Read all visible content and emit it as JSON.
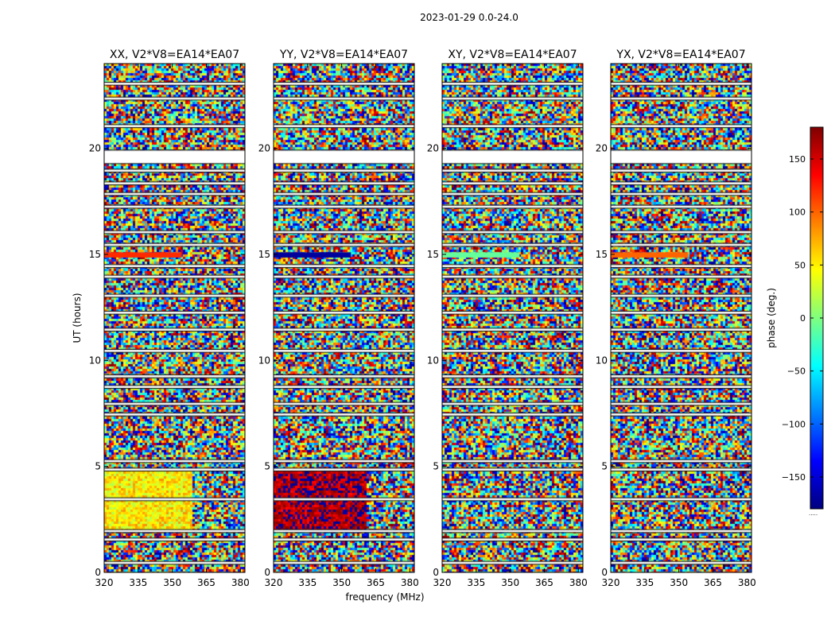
{
  "chart_data": {
    "type": "heatmap",
    "title": "2023-01-29 0.0-24.0",
    "xlabel": "frequency (MHz)",
    "ylabel": "UT (hours)",
    "xlim": [
      320,
      382
    ],
    "ylim": [
      0,
      24
    ],
    "x_ticks": [
      320,
      335,
      350,
      365,
      380
    ],
    "y_ticks": [
      0,
      5,
      10,
      15,
      20
    ],
    "panels": [
      {
        "title": "XX, V2*V8=EA14*EA07",
        "low_band_phase": 50,
        "low_band_ut": [
          2.0,
          4.8
        ],
        "low_band_freq_end": 358,
        "flag_band_ut": [
          14.85,
          15.1
        ],
        "flag_band_phase": 120
      },
      {
        "title": "YY, V2*V8=EA14*EA07",
        "low_band_phase": 165,
        "low_band_ut": [
          2.0,
          4.8
        ],
        "low_band_freq_end": 360,
        "flag_band_ut": [
          14.85,
          15.1
        ],
        "flag_band_phase": -170
      },
      {
        "title": "XY, V2*V8=EA14*EA07",
        "low_band_phase": null,
        "low_band_ut": null,
        "low_band_freq_end": null,
        "flag_band_ut": [
          14.85,
          15.1
        ],
        "flag_band_phase": -10
      },
      {
        "title": "YX, V2*V8=EA14*EA07",
        "low_band_phase": null,
        "low_band_ut": null,
        "low_band_freq_end": null,
        "flag_band_ut": [
          14.85,
          15.1
        ],
        "flag_band_phase": 100
      }
    ],
    "gap_bands_ut": [
      [
        0.4,
        0.5
      ],
      [
        1.5,
        1.6
      ],
      [
        1.9,
        2.0
      ],
      [
        3.4,
        3.5
      ],
      [
        4.8,
        4.9
      ],
      [
        5.2,
        5.3
      ],
      [
        7.4,
        7.5
      ],
      [
        7.9,
        8.0
      ],
      [
        8.7,
        8.8
      ],
      [
        9.2,
        9.3
      ],
      [
        10.4,
        10.5
      ],
      [
        11.4,
        11.5
      ],
      [
        12.2,
        12.3
      ],
      [
        13.0,
        13.1
      ],
      [
        13.9,
        14.0
      ],
      [
        14.4,
        14.5
      ],
      [
        15.4,
        15.5
      ],
      [
        16.0,
        16.1
      ],
      [
        17.2,
        17.3
      ],
      [
        17.8,
        17.9
      ],
      [
        18.3,
        18.4
      ],
      [
        18.9,
        19.0
      ],
      [
        19.3,
        19.9
      ],
      [
        21.0,
        21.1
      ],
      [
        22.3,
        22.4
      ],
      [
        23.0,
        23.1
      ]
    ],
    "colorbar": {
      "label": "phase (deg.)",
      "range": [
        -180,
        180
      ],
      "ticks": [
        -150,
        -100,
        -50,
        0,
        50,
        100,
        150
      ],
      "colormap": "jet",
      "footnote": "....."
    }
  }
}
